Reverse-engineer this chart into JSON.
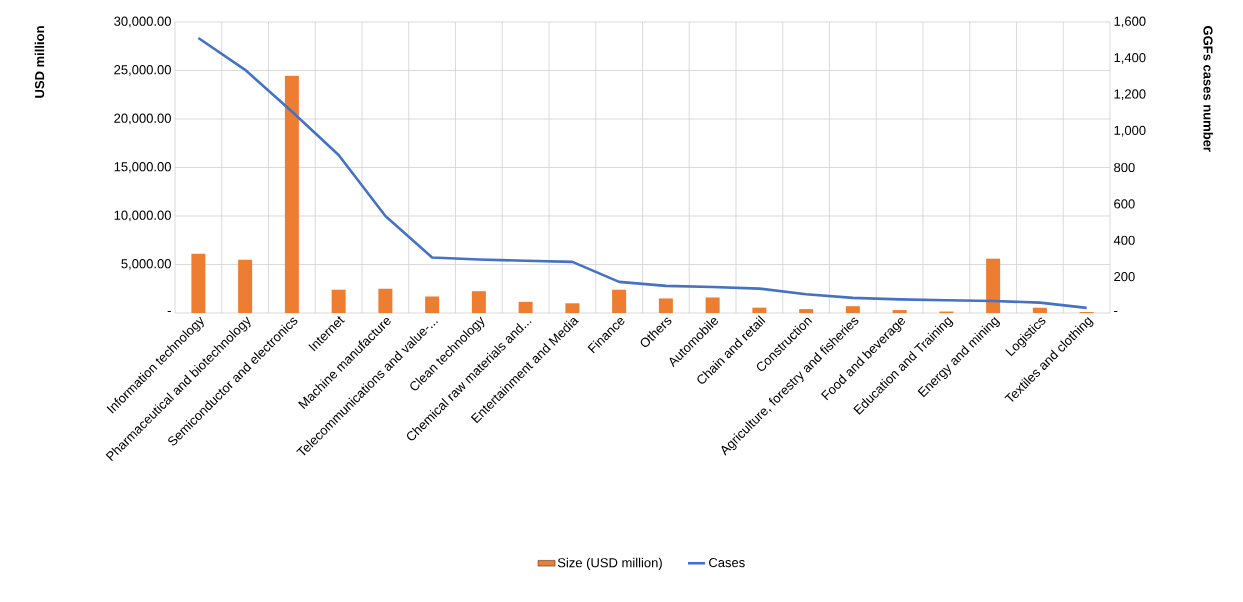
{
  "chart_data": {
    "type": "bar",
    "categories": [
      "Information technology",
      "Pharmaceutical and biotechnology",
      "Semiconductor and electronics",
      "Internet",
      "Machine manufacture",
      "Telecommunications and value-...",
      "Clean technology",
      "Chemical raw materials and...",
      "Entertainment and Media",
      "Finance",
      "Others",
      "Automobile",
      "Chain and retail",
      "Construction",
      "Agriculture, forestry and fisheries",
      "Food and beverage",
      "Education and Training",
      "Energy and mining",
      "Logistics",
      "Textiles and clothing"
    ],
    "series": [
      {
        "name": "Size (USD million)",
        "color": "#ed7d31",
        "values": [
          6100,
          5500,
          24450,
          2400,
          2500,
          1700,
          2250,
          1150,
          1000,
          2400,
          1500,
          1600,
          550,
          400,
          700,
          300,
          150,
          5600,
          550,
          100
        ]
      },
      {
        "name": "Cases",
        "type": "line",
        "axis": "y2",
        "color": "#4472c4",
        "values": [
          1512,
          1337,
          1108,
          869,
          533,
          305,
          294,
          287,
          281,
          171,
          149,
          143,
          134,
          103,
          83,
          75,
          70,
          66,
          57,
          28
        ]
      }
    ],
    "ylabel": "USD million",
    "y2label": "GGFs cases number",
    "ylim": [
      0,
      30000
    ],
    "yticks": [
      {
        "value": 0,
        "label": "-"
      },
      {
        "value": 5000,
        "label": "5,000.00"
      },
      {
        "value": 10000,
        "label": "10,000.00"
      },
      {
        "value": 15000,
        "label": "15,000.00"
      },
      {
        "value": 20000,
        "label": "20,000.00"
      },
      {
        "value": 25000,
        "label": "25,000.00"
      },
      {
        "value": 30000,
        "label": "30,000.00"
      }
    ],
    "y2lim": [
      0,
      1600
    ],
    "y2ticks": [
      {
        "value": 0,
        "label": "-"
      },
      200,
      400,
      600,
      800,
      {
        "value": 1000,
        "label": "1,000"
      },
      {
        "value": 1200,
        "label": "1,200"
      },
      {
        "value": 1400,
        "label": "1,400"
      },
      {
        "value": 1600,
        "label": "1,600"
      }
    ],
    "grid": true,
    "legend": "bottom",
    "marker": "none",
    "line_style": "solid"
  }
}
